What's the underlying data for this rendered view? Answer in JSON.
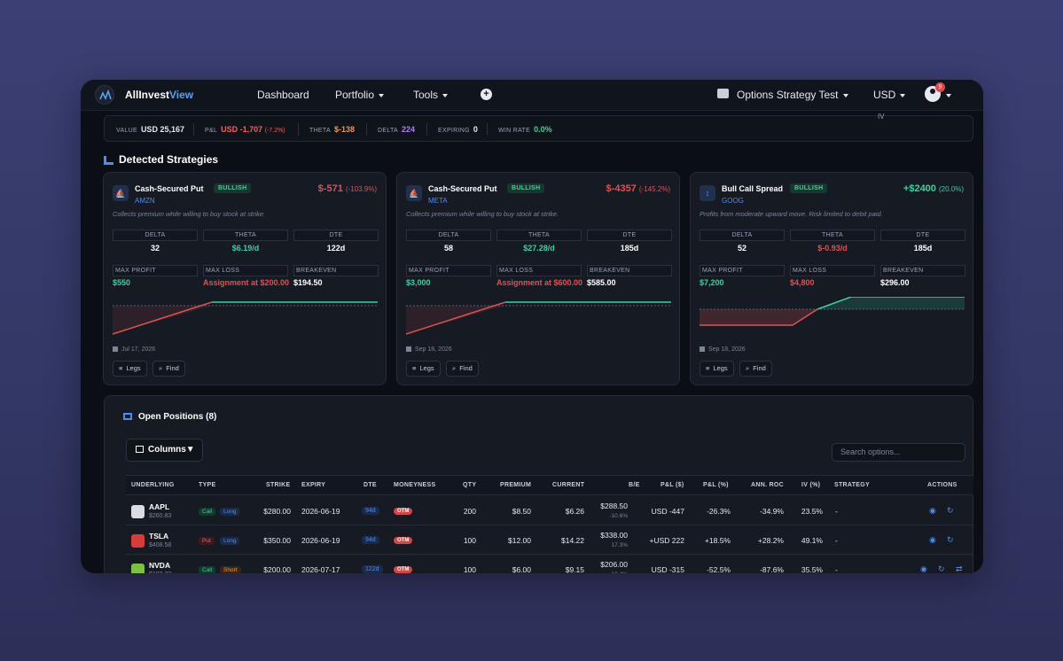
{
  "nav": {
    "brand_a": "AllInvest",
    "brand_b": "View",
    "dashboard": "Dashboard",
    "portfolio": "Portfolio",
    "tools": "Tools",
    "plus": "+",
    "account": "Options Strategy Test",
    "currency": "USD",
    "badge": "9"
  },
  "stats": {
    "value_k": "VALUE",
    "value_v": "USD 25,167",
    "pnl_k": "P&L",
    "pnl_v": "USD -1,707",
    "pnl_p": "(-7.2%)",
    "theta_k": "THETA",
    "theta_v": "$-138",
    "delta_k": "DELTA",
    "delta_v": "224",
    "exp_k": "EXPIRING",
    "exp_v": "0",
    "win_k": "WIN RATE",
    "win_v": "0.0%",
    "iv": "IV"
  },
  "strategies_title": "Detected Strategies",
  "cards": [
    {
      "name": "Cash-Secured Put",
      "bias": "BULLISH",
      "ticker": "AMZN",
      "pnl": "$-571",
      "pnl_pct": "(-103.9%)",
      "desc": "Collects premium while willing to buy stock at strike.",
      "delta_k": "DELTA",
      "delta": "32",
      "theta_k": "THETA",
      "theta": "$6.19/d",
      "dte_k": "DTE",
      "dte": "122d",
      "mp_k": "MAX PROFIT",
      "mp": "$550",
      "ml_k": "MAX LOSS",
      "ml": "Assignment at $200.00",
      "be_k": "BREAKEVEN",
      "be": "$194.50",
      "date": "Jul 17, 2026",
      "legs": "Legs",
      "find": "Find",
      "color": "#e05252"
    },
    {
      "name": "Cash-Secured Put",
      "bias": "BULLISH",
      "ticker": "META",
      "pnl": "$-4357",
      "pnl_pct": "(-145.2%)",
      "desc": "Collects premium while willing to buy stock at strike.",
      "delta_k": "DELTA",
      "delta": "58",
      "theta_k": "THETA",
      "theta": "$27.28/d",
      "dte_k": "DTE",
      "dte": "185d",
      "mp_k": "MAX PROFIT",
      "mp": "$3,000",
      "ml_k": "MAX LOSS",
      "ml": "Assignment at $600.00",
      "be_k": "BREAKEVEN",
      "be": "$585.00",
      "date": "Sep 18, 2026",
      "legs": "Legs",
      "find": "Find",
      "color": "#e05252"
    },
    {
      "name": "Bull Call Spread",
      "bias": "BULLISH",
      "ticker": "GOOG",
      "pnl": "+$2400",
      "pnl_pct": "(20.0%)",
      "desc": "Profits from moderate upward move. Risk limited to debit paid.",
      "delta_k": "DELTA",
      "delta": "52",
      "theta_k": "THETA",
      "theta": "$-0.93/d",
      "dte_k": "DTE",
      "dte": "185d",
      "mp_k": "MAX PROFIT",
      "mp": "$7,200",
      "ml_k": "MAX LOSS",
      "ml": "$4,800",
      "be_k": "BREAKEVEN",
      "be": "$296.00",
      "date": "Sep 18, 2026",
      "legs": "Legs",
      "find": "Find",
      "color": "#3ad29f"
    }
  ],
  "positions": {
    "title": "Open Positions (8)",
    "columns_btn": "Columns▼",
    "search_placeholder": "Search options...",
    "headers": [
      "UNDERLYING",
      "TYPE",
      "STRIKE",
      "EXPIRY",
      "DTE",
      "MONEYNESS",
      "QTY",
      "PREMIUM",
      "CURRENT",
      "B/E",
      "P&L ($)",
      "P&L (%)",
      "ANN. ROC",
      "IV (%)",
      "STRATEGY",
      "ACTIONS"
    ],
    "rows": [
      {
        "sym": "AAPL",
        "price": "$260.83",
        "type": "Call",
        "side": "Long",
        "strike": "$280.00",
        "expiry": "2026-06-19",
        "dte": "94d",
        "money": "OTM",
        "qty": "200",
        "premium": "$8.50",
        "current": "$6.26",
        "be": "$288.50",
        "be_pct": "-10.6%",
        "pnl": "USD -447",
        "pnl_pct": "-26.3%",
        "roc": "-34.9%",
        "iv": "23.5%",
        "strategy": "-"
      },
      {
        "sym": "TSLA",
        "price": "$408.58",
        "type": "Put",
        "side": "Long",
        "strike": "$350.00",
        "expiry": "2026-06-19",
        "dte": "94d",
        "money": "OTM",
        "qty": "100",
        "premium": "$12.00",
        "current": "$14.22",
        "be": "$338.00",
        "be_pct": "17.3%",
        "pnl": "+USD 222",
        "pnl_pct": "+18.5%",
        "roc": "+28.2%",
        "iv": "49.1%",
        "strategy": "-"
      },
      {
        "sym": "NVDA",
        "price": "$183.22",
        "type": "Call",
        "side": "Short",
        "strike": "$200.00",
        "expiry": "2026-07-17",
        "dte": "122d",
        "money": "OTM",
        "qty": "100",
        "premium": "$6.00",
        "current": "$9.15",
        "be": "$206.00",
        "be_pct": "-12.4%",
        "pnl": "USD -315",
        "pnl_pct": "-52.5%",
        "roc": "-87.6%",
        "iv": "35.5%",
        "strategy": "-"
      }
    ]
  }
}
